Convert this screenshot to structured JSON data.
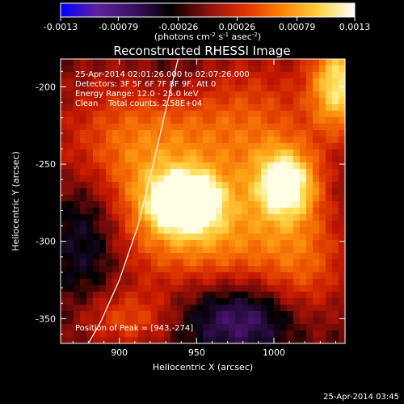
{
  "chart_data": {
    "type": "heatmap",
    "title": "Reconstructed RHESSI Image",
    "xlabel": "Heliocentric X (arcsec)",
    "ylabel": "Heliocentric Y (arcsec)",
    "xlim": [
      862,
      1046
    ],
    "ylim": [
      -366,
      -182
    ],
    "x_ticks": [
      900,
      950,
      1000
    ],
    "y_ticks": [
      -350,
      -300,
      -250,
      -200
    ],
    "colorbar": {
      "range": [
        -0.0013,
        0.0013
      ],
      "ticks": [
        "-0.0013",
        "-0.00079",
        "-0.00026",
        "0.00026",
        "0.00079",
        "0.0013"
      ],
      "label_main": "(photons cm",
      "label_exp1": "-2",
      "label_mid": " s",
      "label_exp2": "-1",
      "label_mid2": " asec",
      "label_exp3": "-2",
      "label_end": ")",
      "colors": [
        "#0000ff",
        "#6020a0",
        "#3a1060",
        "#000000",
        "#8a1010",
        "#e03000",
        "#ff8000",
        "#ffd040",
        "#ffffff"
      ]
    },
    "info_lines": [
      "25-Apr-2014 02:01:26.000 to 02:07:26.000",
      "Detectors: 3F 5F 6F 7F 8F 9F, Att 0",
      "Energy Range: 12.0 - 25.0 keV",
      "Clean    Total counts: 2.58E+04"
    ],
    "peak_label": "Position of Peak = [943,-274]",
    "peak": [
      943,
      -274
    ],
    "sources": [
      {
        "x": 943,
        "y": -274,
        "amp": 1.0,
        "sx": 16,
        "sy": 13
      },
      {
        "x": 1008,
        "y": -263,
        "amp": 0.82,
        "sx": 14,
        "sy": 16
      },
      {
        "x": 1042,
        "y": -198,
        "amp": 0.8,
        "sx": 13,
        "sy": 22
      },
      {
        "x": 915,
        "y": -245,
        "amp": 0.55,
        "sx": 40,
        "sy": 35
      },
      {
        "x": 960,
        "y": -300,
        "amp": 0.45,
        "sx": 45,
        "sy": 22
      },
      {
        "x": 990,
        "y": -230,
        "amp": 0.35,
        "sx": 30,
        "sy": 35
      },
      {
        "x": 905,
        "y": -350,
        "amp": 0.35,
        "sx": 22,
        "sy": 14
      },
      {
        "x": 1020,
        "y": -320,
        "amp": 0.3,
        "sx": 20,
        "sy": 30
      },
      {
        "x": 880,
        "y": -290,
        "amp": -0.35,
        "sx": 18,
        "sy": 30
      },
      {
        "x": 980,
        "y": -350,
        "amp": -0.35,
        "sx": 28,
        "sy": 16
      },
      {
        "x": 935,
        "y": -195,
        "amp": -0.15,
        "sx": 18,
        "sy": 12
      }
    ],
    "limb": [
      [
        938,
        -182
      ],
      [
        930,
        -215
      ],
      [
        922,
        -250
      ],
      [
        912,
        -290
      ],
      [
        900,
        -325
      ],
      [
        888,
        -352
      ],
      [
        880,
        -366
      ]
    ],
    "grid": false
  },
  "footer": {
    "timestamp": "25-Apr-2014 03:45"
  }
}
